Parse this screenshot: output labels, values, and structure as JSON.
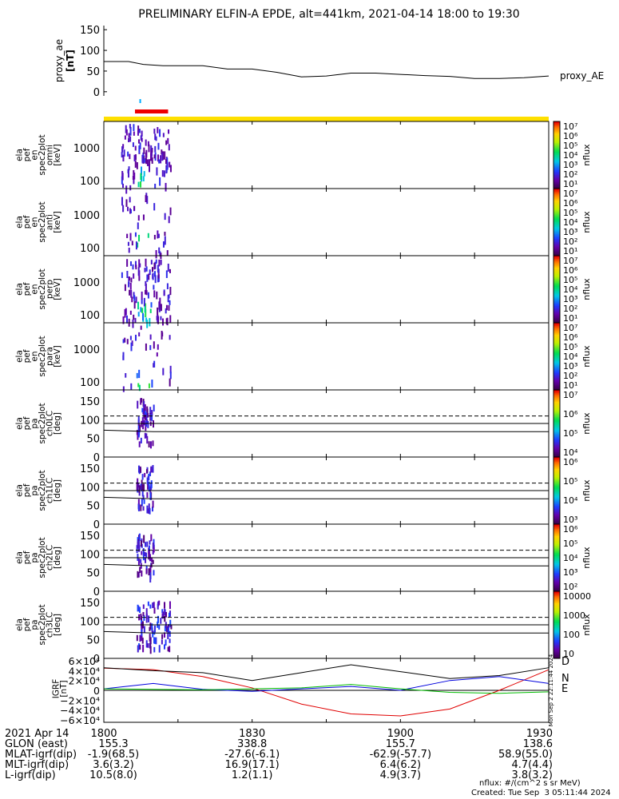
{
  "title": "PRELIMINARY ELFIN-A EPDE, alt=441km, 2021-04-14 18:00 to 19:30",
  "colors": {
    "yellow_bar": "#ffe000",
    "red_bar": "#ee0000",
    "marker": "#00aaff",
    "D": "#e00000",
    "N": "#0000dd",
    "E": "#00bb00"
  },
  "proxy_panel": {
    "ylabel": "proxy_ae",
    "units": "[nT]",
    "legend": "proxy_AE",
    "yticks": [
      "150",
      "100",
      "50",
      "0"
    ],
    "chart_data": {
      "type": "line",
      "x_label_values": [
        "18:00",
        "19:30"
      ],
      "x_minutes": [
        0,
        5,
        8,
        12,
        20,
        25,
        30,
        35,
        40,
        45,
        50,
        55,
        60,
        65,
        70,
        75,
        80,
        85,
        90
      ],
      "values": [
        73,
        73,
        66,
        63,
        63,
        55,
        55,
        47,
        36,
        38,
        45,
        45,
        42,
        39,
        37,
        32,
        32,
        34,
        38
      ],
      "ylim": [
        -10,
        160
      ]
    }
  },
  "spec_panels": [
    {
      "labels": [
        "ela",
        "pef",
        "en",
        "spec2plot",
        "omni"
      ],
      "units": "[keV]",
      "yticks": [
        "1000",
        "100"
      ],
      "cbar_ticks": [
        "10⁷",
        "10⁶",
        "10⁵",
        "10⁴",
        "10³",
        "10²",
        "10¹"
      ],
      "cbar_label": "nflux"
    },
    {
      "labels": [
        "ela",
        "pef",
        "en",
        "spec2plot",
        "anti"
      ],
      "units": "[keV]",
      "yticks": [
        "1000",
        "100"
      ],
      "cbar_ticks": [
        "10⁷",
        "10⁶",
        "10⁵",
        "10⁴",
        "10³",
        "10²",
        "10¹"
      ],
      "cbar_label": "nflux"
    },
    {
      "labels": [
        "ela",
        "pef",
        "en",
        "spec2plot",
        "perp"
      ],
      "units": "[keV]",
      "yticks": [
        "1000",
        "100"
      ],
      "cbar_ticks": [
        "10⁷",
        "10⁶",
        "10⁵",
        "10⁴",
        "10³",
        "10²",
        "10¹"
      ],
      "cbar_label": "nflux"
    },
    {
      "labels": [
        "ela",
        "pef",
        "en",
        "spec2plot",
        "para"
      ],
      "units": "[keV]",
      "yticks": [
        "1000",
        "100"
      ],
      "cbar_ticks": [
        "10⁷",
        "10⁶",
        "10⁵",
        "10⁴",
        "10³",
        "10²",
        "10¹"
      ],
      "cbar_label": "nflux"
    }
  ],
  "pa_panels": [
    {
      "labels": [
        "ela",
        "pef",
        "pa",
        "spec2plot",
        "ch0LC"
      ],
      "units": "[deg]",
      "yticks": [
        "150",
        "100",
        "50",
        "0"
      ],
      "cbar_ticks": [
        "10⁷",
        "10⁶",
        "10⁵",
        "10⁴"
      ],
      "cbar_label": "nflux"
    },
    {
      "labels": [
        "ela",
        "pef",
        "pa",
        "spec2plot",
        "ch1LC"
      ],
      "units": "[deg]",
      "yticks": [
        "150",
        "100",
        "50",
        "0"
      ],
      "cbar_ticks": [
        "10⁶",
        "10⁵",
        "10⁴",
        "10³"
      ],
      "cbar_label": "nflux"
    },
    {
      "labels": [
        "ela",
        "pef",
        "pa",
        "spec2plot",
        "ch2LC"
      ],
      "units": "[deg]",
      "yticks": [
        "150",
        "100",
        "50",
        "0"
      ],
      "cbar_ticks": [
        "10⁶",
        "10⁵",
        "10⁴",
        "10³",
        "10²"
      ],
      "cbar_label": "nflux"
    },
    {
      "labels": [
        "ela",
        "pef",
        "pa",
        "spec2plot",
        "ch3LC"
      ],
      "units": "[deg]",
      "yticks": [
        "150",
        "100",
        "50",
        "0"
      ],
      "cbar_ticks": [
        "10000",
        "1000",
        "100",
        "10"
      ],
      "cbar_label": "nflux"
    }
  ],
  "igrf_panel": {
    "ylabel": "IGRF",
    "units": "[nT]",
    "yticks": [
      "6×10⁴",
      "4×10⁴",
      "2×10⁴",
      "0",
      "−2×10⁴",
      "−4×10⁴",
      "−6×10⁴"
    ],
    "legend": [
      "D",
      "N",
      "E"
    ],
    "side_text": "Mon Sep  2 22:11:44 2024",
    "chart_data": {
      "type": "line",
      "x_minutes": [
        0,
        10,
        20,
        30,
        40,
        50,
        60,
        70,
        80,
        90
      ],
      "ylim": [
        -65000,
        65000
      ],
      "series": [
        {
          "name": "D",
          "values": [
            45000,
            42000,
            28000,
            5000,
            -28000,
            -48000,
            -52000,
            -38000,
            0,
            42000
          ]
        },
        {
          "name": "N",
          "values": [
            3000,
            14000,
            2000,
            -2000,
            3000,
            8000,
            0,
            20000,
            28000,
            14000
          ]
        },
        {
          "name": "E",
          "values": [
            3000,
            2000,
            1000,
            3000,
            5000,
            12000,
            3000,
            -4000,
            -6000,
            -3000
          ]
        },
        {
          "name": "",
          "values": [
            46000,
            40000,
            36000,
            20000,
            36000,
            52000,
            38000,
            24000,
            30000,
            46000
          ]
        }
      ]
    }
  },
  "xaxis": {
    "row_label": "2021 Apr 14",
    "ticks": [
      "1800",
      "1830",
      "1900",
      "1930"
    ]
  },
  "ephemeris": [
    {
      "label": "GLON (east)",
      "values": [
        "155.3",
        "338.8",
        "155.7",
        "138.6"
      ]
    },
    {
      "label": "MLAT-igrf(dip)",
      "values": [
        "-1.9(68.5)",
        "-27.6(-6.1)",
        "-62.9(-57.7)",
        "58.9(55.0)"
      ]
    },
    {
      "label": "MLT-igrf(dip)",
      "values": [
        "3.6(3.2)",
        "16.9(17.1)",
        "6.4(6.2)",
        "4.7(4.4)"
      ]
    },
    {
      "label": "L-igrf(dip)",
      "values": [
        "10.5(8.0)",
        "1.2(1.1)",
        "4.9(3.7)",
        "3.8(3.2)"
      ]
    }
  ],
  "footer": {
    "units_note": "nflux: #/(cm^2 s sr MeV)",
    "created": "Created: Tue Sep  3 05:11:44 2024"
  }
}
